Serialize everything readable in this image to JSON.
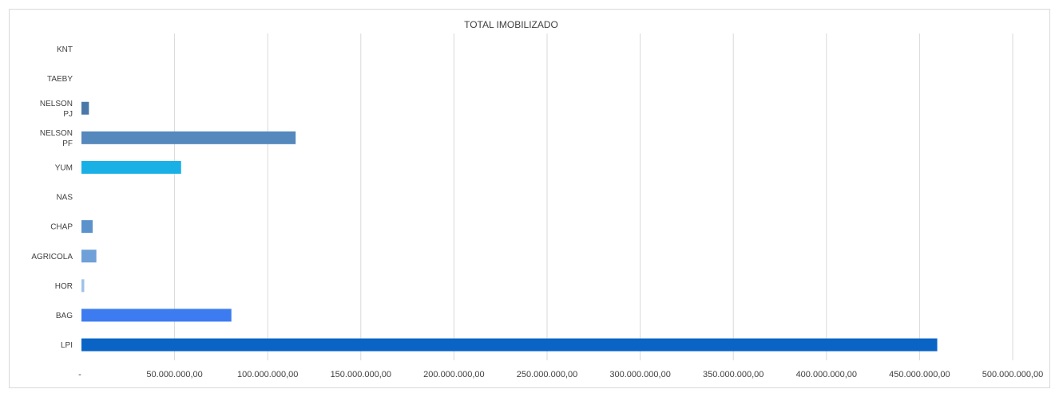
{
  "chart_data": {
    "type": "bar",
    "orientation": "horizontal",
    "title": "TOTAL IMOBILIZADO",
    "xlabel": "",
    "ylabel": "",
    "categories": [
      "KNT",
      "TAEBY",
      "NELSON PJ",
      "NELSON PF",
      "YUM",
      "NAS",
      "CHAP",
      "AGRICOLA",
      "HOR",
      "BAG",
      "LPI"
    ],
    "values": [
      0,
      0,
      4000000,
      115000000,
      53500000,
      0,
      6000000,
      8000000,
      1500000,
      80500000,
      459500000
    ],
    "colors": [
      "#5B9BD5",
      "#5B9BD5",
      "#4A78A8",
      "#5588BC",
      "#19B0E6",
      "#5B9BD5",
      "#5B92CC",
      "#6FA0D8",
      "#A0C2E8",
      "#3C7CF0",
      "#0A64C5"
    ],
    "xlim": [
      0,
      500000000
    ],
    "x_ticks": [
      0,
      50000000,
      100000000,
      150000000,
      200000000,
      250000000,
      300000000,
      350000000,
      400000000,
      450000000,
      500000000
    ],
    "x_tick_labels": [
      "-",
      "50.000.000,00",
      "100.000.000,00",
      "150.000.000,00",
      "200.000.000,00",
      "250.000.000,00",
      "300.000.000,00",
      "350.000.000,00",
      "400.000.000,00",
      "450.000.000,00",
      "500.000.000,00"
    ],
    "grid": true,
    "legend": "none"
  }
}
